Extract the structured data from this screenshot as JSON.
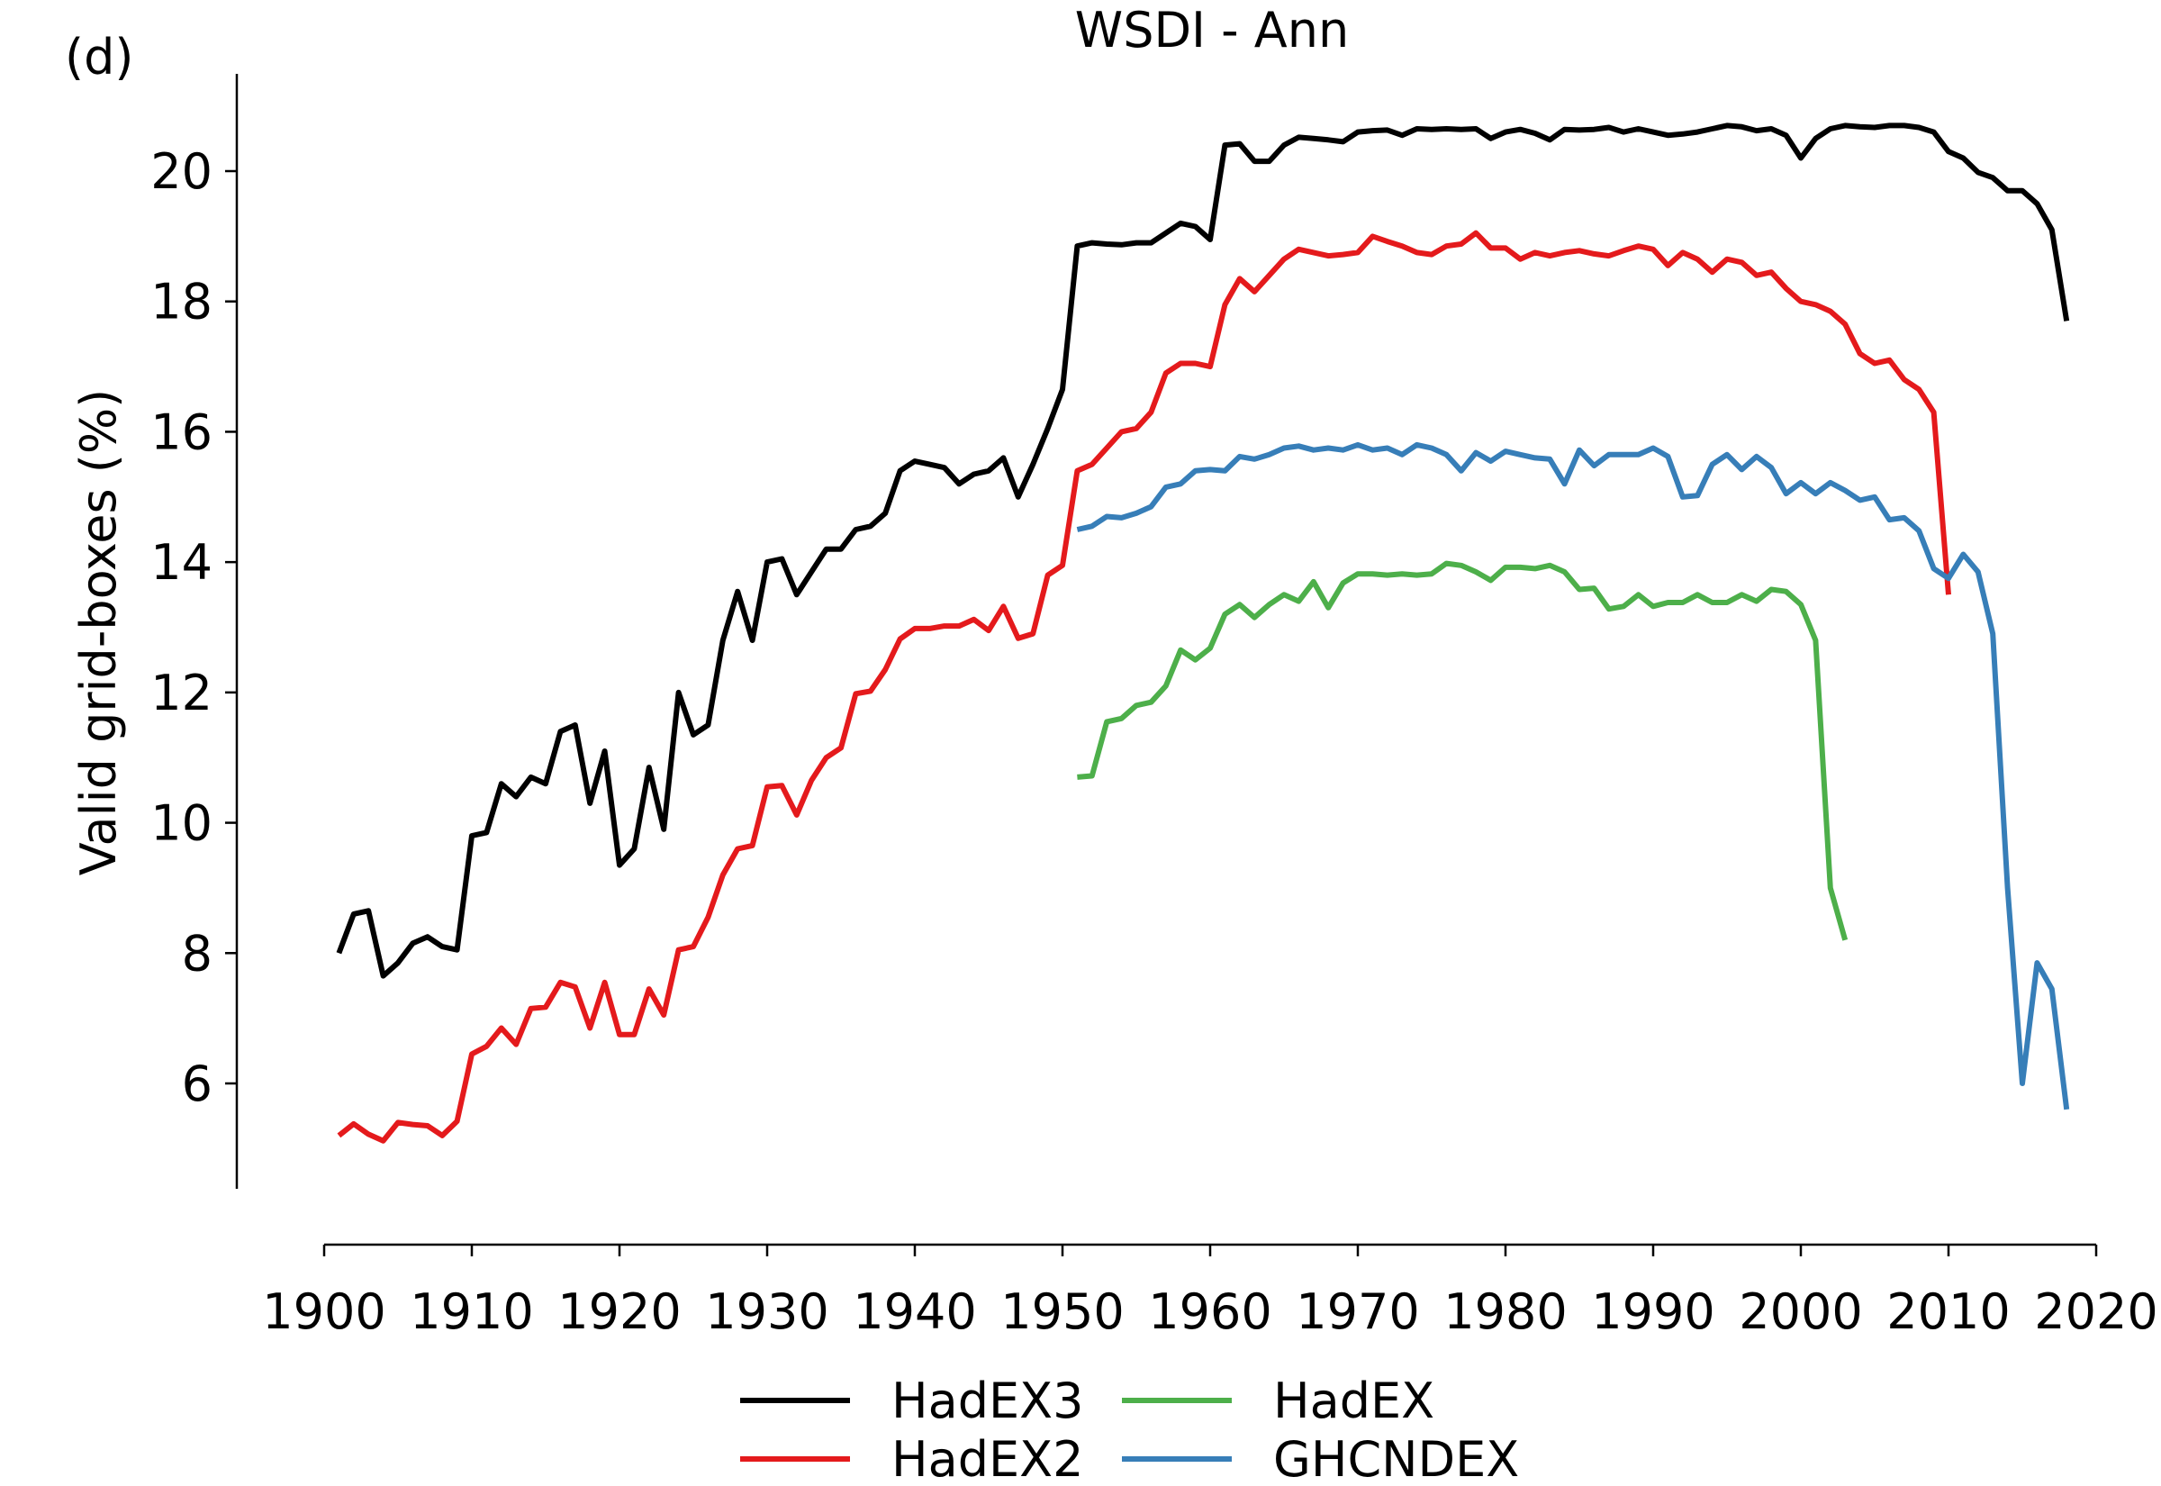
{
  "panel_label": "(d)",
  "chart_data": {
    "type": "line",
    "title": "WSDI - Ann",
    "xlabel": "",
    "ylabel": "Valid grid-boxes (%)",
    "xlim": [
      1900,
      2020
    ],
    "ylim": [
      4.7,
      21.5
    ],
    "xticks": [
      1900,
      1910,
      1920,
      1930,
      1940,
      1950,
      1960,
      1970,
      1980,
      1990,
      2000,
      2010,
      2020
    ],
    "yticks": [
      6,
      8,
      10,
      12,
      14,
      16,
      18,
      20
    ],
    "grid": false,
    "legend_position": "bottom-center",
    "series": [
      {
        "name": "HadEX3",
        "color": "#000000",
        "x": [
          1901,
          1902,
          1903,
          1904,
          1905,
          1906,
          1907,
          1908,
          1909,
          1910,
          1911,
          1912,
          1913,
          1914,
          1915,
          1916,
          1917,
          1918,
          1919,
          1920,
          1921,
          1922,
          1923,
          1924,
          1925,
          1926,
          1927,
          1928,
          1929,
          1930,
          1931,
          1932,
          1933,
          1934,
          1935,
          1936,
          1937,
          1938,
          1939,
          1940,
          1941,
          1942,
          1943,
          1944,
          1945,
          1946,
          1947,
          1948,
          1949,
          1950,
          1951,
          1952,
          1953,
          1954,
          1955,
          1956,
          1957,
          1958,
          1959,
          1960,
          1961,
          1962,
          1963,
          1964,
          1965,
          1966,
          1967,
          1968,
          1969,
          1970,
          1971,
          1972,
          1973,
          1974,
          1975,
          1976,
          1977,
          1978,
          1979,
          1980,
          1981,
          1982,
          1983,
          1984,
          1985,
          1986,
          1987,
          1988,
          1989,
          1990,
          1991,
          1992,
          1993,
          1994,
          1995,
          1996,
          1997,
          1998,
          1999,
          2000,
          2001,
          2002,
          2003,
          2004,
          2005,
          2006,
          2007,
          2008,
          2009,
          2010,
          2011,
          2012,
          2013,
          2014,
          2015,
          2016,
          2017,
          2018
        ],
        "values": [
          8.0,
          8.6,
          8.65,
          7.65,
          7.85,
          8.15,
          8.25,
          8.1,
          8.05,
          9.8,
          9.85,
          10.6,
          10.4,
          10.7,
          10.6,
          11.4,
          11.5,
          10.3,
          11.1,
          9.35,
          9.6,
          10.85,
          9.9,
          12.0,
          11.35,
          11.5,
          12.8,
          13.55,
          12.8,
          14.0,
          14.05,
          13.5,
          13.85,
          14.2,
          14.2,
          14.5,
          14.55,
          14.75,
          15.4,
          15.55,
          15.5,
          15.45,
          15.2,
          15.35,
          15.4,
          15.6,
          15.0,
          15.5,
          16.05,
          16.65,
          18.85,
          18.9,
          18.88,
          18.87,
          18.9,
          18.9,
          19.05,
          19.2,
          19.15,
          18.95,
          20.4,
          20.42,
          20.15,
          20.15,
          20.4,
          20.52,
          20.5,
          20.48,
          20.45,
          20.6,
          20.62,
          20.63,
          20.55,
          20.65,
          20.64,
          20.65,
          20.64,
          20.65,
          20.5,
          20.6,
          20.64,
          20.58,
          20.48,
          20.64,
          20.63,
          20.64,
          20.67,
          20.6,
          20.65,
          20.6,
          20.55,
          20.57,
          20.6,
          20.65,
          20.7,
          20.68,
          20.62,
          20.65,
          20.55,
          20.2,
          20.5,
          20.65,
          20.7,
          20.68,
          20.67,
          20.7,
          20.7,
          20.67,
          20.6,
          20.3,
          20.2,
          19.98,
          19.9,
          19.7,
          19.7,
          19.5,
          19.1,
          17.7
        ]
      },
      {
        "name": "HadEX2",
        "color": "#e41a1c",
        "x": [
          1901,
          1902,
          1903,
          1904,
          1905,
          1906,
          1907,
          1908,
          1909,
          1910,
          1911,
          1912,
          1913,
          1914,
          1915,
          1916,
          1917,
          1918,
          1919,
          1920,
          1921,
          1922,
          1923,
          1924,
          1925,
          1926,
          1927,
          1928,
          1929,
          1930,
          1931,
          1932,
          1933,
          1934,
          1935,
          1936,
          1937,
          1938,
          1939,
          1940,
          1941,
          1942,
          1943,
          1944,
          1945,
          1946,
          1947,
          1948,
          1949,
          1950,
          1951,
          1952,
          1953,
          1954,
          1955,
          1956,
          1957,
          1958,
          1959,
          1960,
          1961,
          1962,
          1963,
          1964,
          1965,
          1966,
          1967,
          1968,
          1969,
          1970,
          1971,
          1972,
          1973,
          1974,
          1975,
          1976,
          1977,
          1978,
          1979,
          1980,
          1981,
          1982,
          1983,
          1984,
          1985,
          1986,
          1987,
          1988,
          1989,
          1990,
          1991,
          1992,
          1993,
          1994,
          1995,
          1996,
          1997,
          1998,
          1999,
          2000,
          2001,
          2002,
          2003,
          2004,
          2005,
          2006,
          2007,
          2008,
          2009,
          2010
        ],
        "values": [
          5.2,
          5.38,
          5.22,
          5.12,
          5.4,
          5.37,
          5.35,
          5.2,
          5.42,
          6.45,
          6.57,
          6.85,
          6.6,
          7.15,
          7.17,
          7.55,
          7.48,
          6.85,
          7.55,
          6.75,
          6.75,
          7.45,
          7.05,
          8.05,
          8.1,
          8.55,
          9.2,
          9.6,
          9.65,
          10.55,
          10.57,
          10.12,
          10.65,
          11.0,
          11.15,
          11.98,
          12.02,
          12.35,
          12.82,
          12.98,
          12.98,
          13.02,
          13.02,
          13.12,
          12.95,
          13.32,
          12.83,
          12.9,
          13.8,
          13.95,
          15.4,
          15.5,
          15.75,
          16.0,
          16.05,
          16.3,
          16.9,
          17.05,
          17.05,
          17.0,
          17.95,
          18.35,
          18.15,
          18.4,
          18.65,
          18.8,
          18.75,
          18.7,
          18.72,
          18.75,
          19.0,
          18.92,
          18.85,
          18.75,
          18.72,
          18.85,
          18.88,
          19.05,
          18.82,
          18.82,
          18.65,
          18.75,
          18.7,
          18.75,
          18.78,
          18.73,
          18.7,
          18.78,
          18.85,
          18.8,
          18.55,
          18.75,
          18.65,
          18.45,
          18.65,
          18.6,
          18.4,
          18.45,
          18.2,
          18.0,
          17.95,
          17.85,
          17.65,
          17.2,
          17.05,
          17.1,
          16.8,
          16.65,
          16.3,
          13.5
        ]
      },
      {
        "name": "HadEX",
        "color": "#4daf4a",
        "x": [
          1951,
          1952,
          1953,
          1954,
          1955,
          1956,
          1957,
          1958,
          1959,
          1960,
          1961,
          1962,
          1963,
          1964,
          1965,
          1966,
          1967,
          1968,
          1969,
          1970,
          1971,
          1972,
          1973,
          1974,
          1975,
          1976,
          1977,
          1978,
          1979,
          1980,
          1981,
          1982,
          1983,
          1984,
          1985,
          1986,
          1987,
          1988,
          1989,
          1990,
          1991,
          1992,
          1993,
          1994,
          1995,
          1996,
          1997,
          1998,
          1999,
          2000,
          2001,
          2002,
          2003
        ],
        "values": [
          10.7,
          10.72,
          11.55,
          11.6,
          11.8,
          11.85,
          12.1,
          12.65,
          12.5,
          12.68,
          13.2,
          13.35,
          13.15,
          13.35,
          13.5,
          13.4,
          13.7,
          13.3,
          13.68,
          13.82,
          13.82,
          13.8,
          13.82,
          13.8,
          13.82,
          13.98,
          13.95,
          13.85,
          13.72,
          13.92,
          13.92,
          13.9,
          13.95,
          13.85,
          13.58,
          13.6,
          13.28,
          13.32,
          13.5,
          13.32,
          13.38,
          13.38,
          13.5,
          13.38,
          13.38,
          13.5,
          13.4,
          13.58,
          13.55,
          13.35,
          12.8,
          9.0,
          8.2
        ]
      },
      {
        "name": "GHCNDEX",
        "color": "#377eb8",
        "x": [
          1951,
          1952,
          1953,
          1954,
          1955,
          1956,
          1957,
          1958,
          1959,
          1960,
          1961,
          1962,
          1963,
          1964,
          1965,
          1966,
          1967,
          1968,
          1969,
          1970,
          1971,
          1972,
          1973,
          1974,
          1975,
          1976,
          1977,
          1978,
          1979,
          1980,
          1981,
          1982,
          1983,
          1984,
          1985,
          1986,
          1987,
          1988,
          1989,
          1990,
          1991,
          1992,
          1993,
          1994,
          1995,
          1996,
          1997,
          1998,
          1999,
          2000,
          2001,
          2002,
          2003,
          2004,
          2005,
          2006,
          2007,
          2008,
          2009,
          2010,
          2011,
          2012,
          2013,
          2014,
          2015,
          2016,
          2017,
          2018
        ],
        "values": [
          14.5,
          14.55,
          14.7,
          14.68,
          14.75,
          14.85,
          15.15,
          15.2,
          15.4,
          15.42,
          15.4,
          15.62,
          15.58,
          15.65,
          15.75,
          15.78,
          15.72,
          15.75,
          15.72,
          15.8,
          15.72,
          15.75,
          15.65,
          15.8,
          15.75,
          15.65,
          15.4,
          15.68,
          15.55,
          15.7,
          15.65,
          15.6,
          15.58,
          15.2,
          15.72,
          15.48,
          15.65,
          15.65,
          15.65,
          15.75,
          15.62,
          15.0,
          15.02,
          15.5,
          15.65,
          15.42,
          15.62,
          15.45,
          15.05,
          15.22,
          15.05,
          15.22,
          15.1,
          14.95,
          15.0,
          14.65,
          14.68,
          14.48,
          13.9,
          13.75,
          14.12,
          13.85,
          12.9,
          9.0,
          6.0,
          7.85,
          7.45,
          5.6
        ]
      }
    ]
  }
}
